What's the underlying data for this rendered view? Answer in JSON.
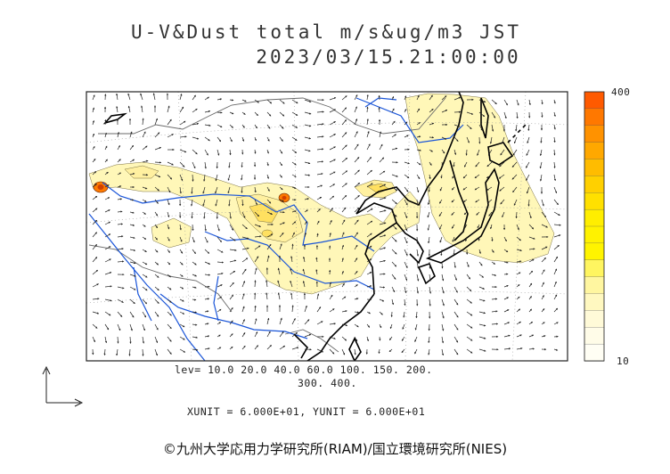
{
  "header": {
    "title_line1": "U-V&Dust total m/s&ug/m3 JST",
    "title_line2": "2023/03/15.21:00:00"
  },
  "legend": {
    "levels_line1": "lev= 10.0 20.0 40.0 60.0 100. 150. 200.",
    "levels_line2": "300. 400.",
    "units": "XUNIT = 6.000E+01, YUNIT = 6.000E+01",
    "scale_max": "400",
    "scale_min": "10",
    "scale_colors": [
      "#ff5a00",
      "#ff7800",
      "#ff9200",
      "#ffa800",
      "#ffbc00",
      "#ffd000",
      "#ffe000",
      "#ffee00",
      "#fff200",
      "#fff400",
      "#fff560",
      "#fff6a0",
      "#fff8c0",
      "#fffad8",
      "#fffce8",
      "#fffef4"
    ]
  },
  "map": {
    "colors": {
      "coast": "#000000",
      "river": "#1a55d8",
      "border": "#888888",
      "dust_light": "#fff7b8",
      "dust_mid": "#fff0a0",
      "dust_high": "#ffe060",
      "dust_peak": "#ff7a00",
      "arrow": "#222222"
    },
    "icons": [
      "wind-vector-arrow",
      "reference-axes-arrows"
    ]
  },
  "footer": {
    "copyright": "©九州大学応用力学研究所(RIAM)/国立環境研究所(NIES)"
  }
}
